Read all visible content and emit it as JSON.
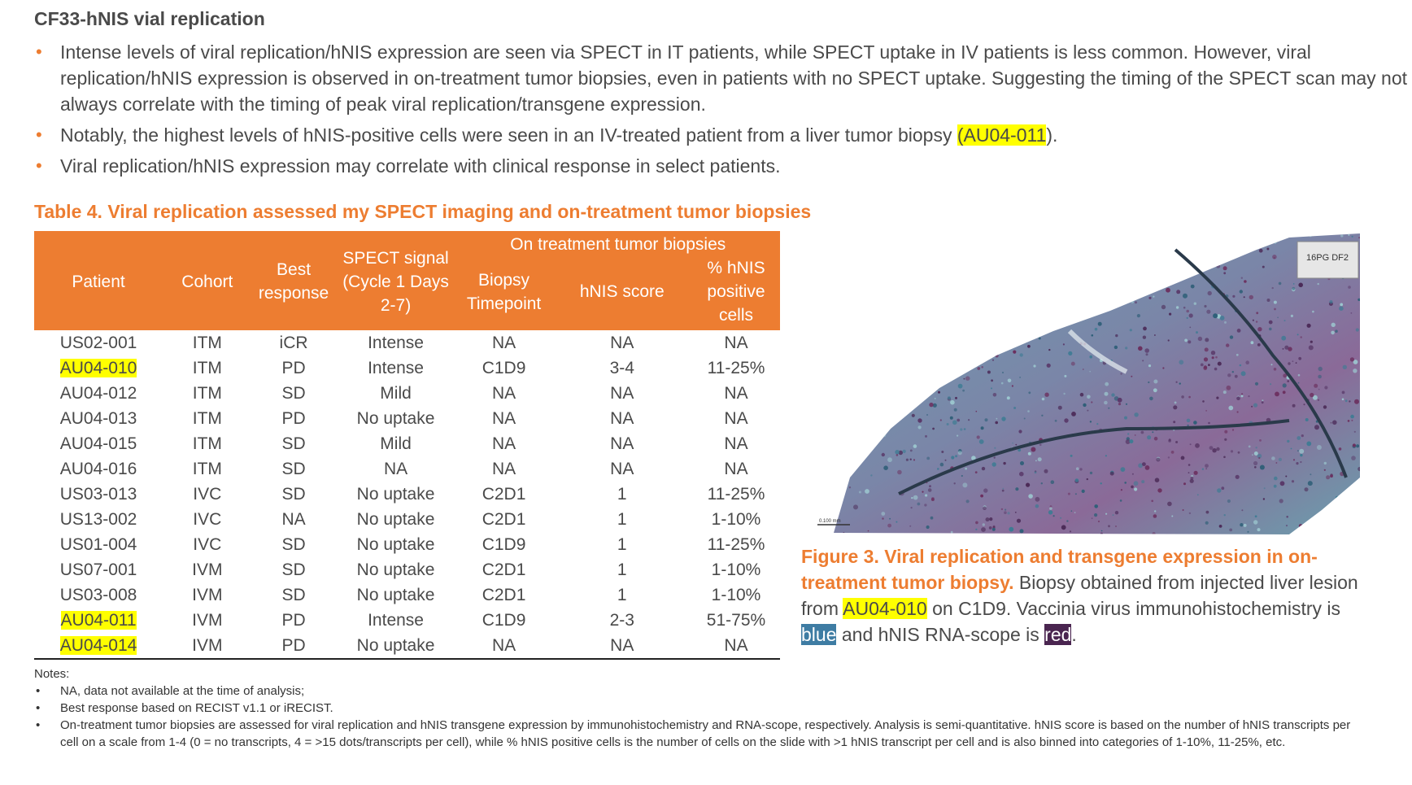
{
  "title": "CF33-hNIS vial replication",
  "bullets": [
    {
      "text": "Intense levels of viral replication/hNIS expression are seen via SPECT in IT patients, while SPECT uptake in IV patients is less common. However, viral replication/hNIS expression is observed in on-treatment tumor biopsies, even in patients with no SPECT uptake. Suggesting the timing of the SPECT scan may not always correlate with the timing of peak viral replication/transgene expression."
    },
    {
      "before": "Notably, the highest levels of hNIS-positive cells were seen in an IV-treated patient from a liver tumor biopsy ",
      "highlight": "(AU04-011",
      "after": ")."
    },
    {
      "text": "Viral replication/hNIS expression may correlate with clinical response in select patients."
    }
  ],
  "table": {
    "caption": "Table 4. Viral replication assessed my SPECT imaging and on-treatment tumor biopsies",
    "headers": {
      "patient": "Patient",
      "cohort": "Cohort",
      "best_response": "Best response",
      "spect": "SPECT signal (Cycle 1 Days 2-7)",
      "group": "On treatment tumor biopsies",
      "biopsy": "Biopsy Timepoint",
      "hnis_score": "hNIS score",
      "hnis_pct": "% hNIS positive cells"
    },
    "rows": [
      {
        "patient": "US02-001",
        "cohort": "ITM",
        "response": "iCR",
        "spect": "Intense",
        "timepoint": "NA",
        "score": "NA",
        "pct": "NA",
        "highlight": false
      },
      {
        "patient": "AU04-010",
        "cohort": "ITM",
        "response": "PD",
        "spect": "Intense",
        "timepoint": "C1D9",
        "score": "3-4",
        "pct": "11-25%",
        "highlight": true
      },
      {
        "patient": "AU04-012",
        "cohort": "ITM",
        "response": "SD",
        "spect": "Mild",
        "timepoint": "NA",
        "score": "NA",
        "pct": "NA",
        "highlight": false
      },
      {
        "patient": "AU04-013",
        "cohort": "ITM",
        "response": "PD",
        "spect": "No uptake",
        "timepoint": "NA",
        "score": "NA",
        "pct": "NA",
        "highlight": false
      },
      {
        "patient": "AU04-015",
        "cohort": "ITM",
        "response": "SD",
        "spect": "Mild",
        "timepoint": "NA",
        "score": "NA",
        "pct": "NA",
        "highlight": false
      },
      {
        "patient": "AU04-016",
        "cohort": "ITM",
        "response": "SD",
        "spect": "NA",
        "timepoint": "NA",
        "score": "NA",
        "pct": "NA",
        "highlight": false
      },
      {
        "patient": "US03-013",
        "cohort": "IVC",
        "response": "SD",
        "spect": "No uptake",
        "timepoint": "C2D1",
        "score": "1",
        "pct": "11-25%",
        "highlight": false
      },
      {
        "patient": "US13-002",
        "cohort": "IVC",
        "response": "NA",
        "spect": "No uptake",
        "timepoint": "C2D1",
        "score": "1",
        "pct": "1-10%",
        "highlight": false
      },
      {
        "patient": "US01-004",
        "cohort": "IVC",
        "response": "SD",
        "spect": "No uptake",
        "timepoint": "C1D9",
        "score": "1",
        "pct": "11-25%",
        "highlight": false
      },
      {
        "patient": "US07-001",
        "cohort": "IVM",
        "response": "SD",
        "spect": "No uptake",
        "timepoint": "C2D1",
        "score": "1",
        "pct": "1-10%",
        "highlight": false
      },
      {
        "patient": "US03-008",
        "cohort": "IVM",
        "response": "SD",
        "spect": "No uptake",
        "timepoint": "C2D1",
        "score": "1",
        "pct": "1-10%",
        "highlight": false
      },
      {
        "patient": "AU04-011",
        "cohort": "IVM",
        "response": "PD",
        "spect": "Intense",
        "timepoint": "C1D9",
        "score": "2-3",
        "pct": "51-75%",
        "highlight": true
      },
      {
        "patient": "AU04-014",
        "cohort": "IVM",
        "response": "PD",
        "spect": "No uptake",
        "timepoint": "NA",
        "score": "NA",
        "pct": "NA",
        "highlight": true
      }
    ]
  },
  "figure": {
    "slide_label_line1": "16PG DF2",
    "scale_label": "0.100 mm",
    "caption_title": "Figure 3. Viral replication and transgene expression in on-treatment tumor biopsy.",
    "caption_text_1": " Biopsy obtained from injected liver lesion from ",
    "caption_highlight": "AU04-010",
    "caption_text_2": " on C1D9. Vaccinia virus immunohistochemistry is ",
    "caption_blue": "blue",
    "caption_text_3": " and hNIS RNA-scope is ",
    "caption_red": "red",
    "caption_text_4": "."
  },
  "notes": {
    "label": "Notes:",
    "items": [
      "NA, data not available at the time of analysis;",
      "Best response based on RECIST v1.1 or iRECIST.",
      "On-treatment tumor biopsies are assessed for viral replication and hNIS transgene expression by immunohistochemistry and RNA-scope, respectively. Analysis is semi-quantitative. hNIS score is based on the number of hNIS transcripts per cell on a scale from 1-4 (0 = no transcripts, 4 = >15 dots/transcripts per cell), while % hNIS positive cells is the number of cells on the slide with >1 hNIS transcript per cell and is also binned into categories of 1-10%, 11-25%, etc."
    ]
  },
  "colors": {
    "accent": "#ED7D31",
    "highlight": "#FFFF00",
    "stain_blue": "#3E7CA3",
    "stain_red": "#4A2550",
    "text": "#4A4A4A"
  }
}
